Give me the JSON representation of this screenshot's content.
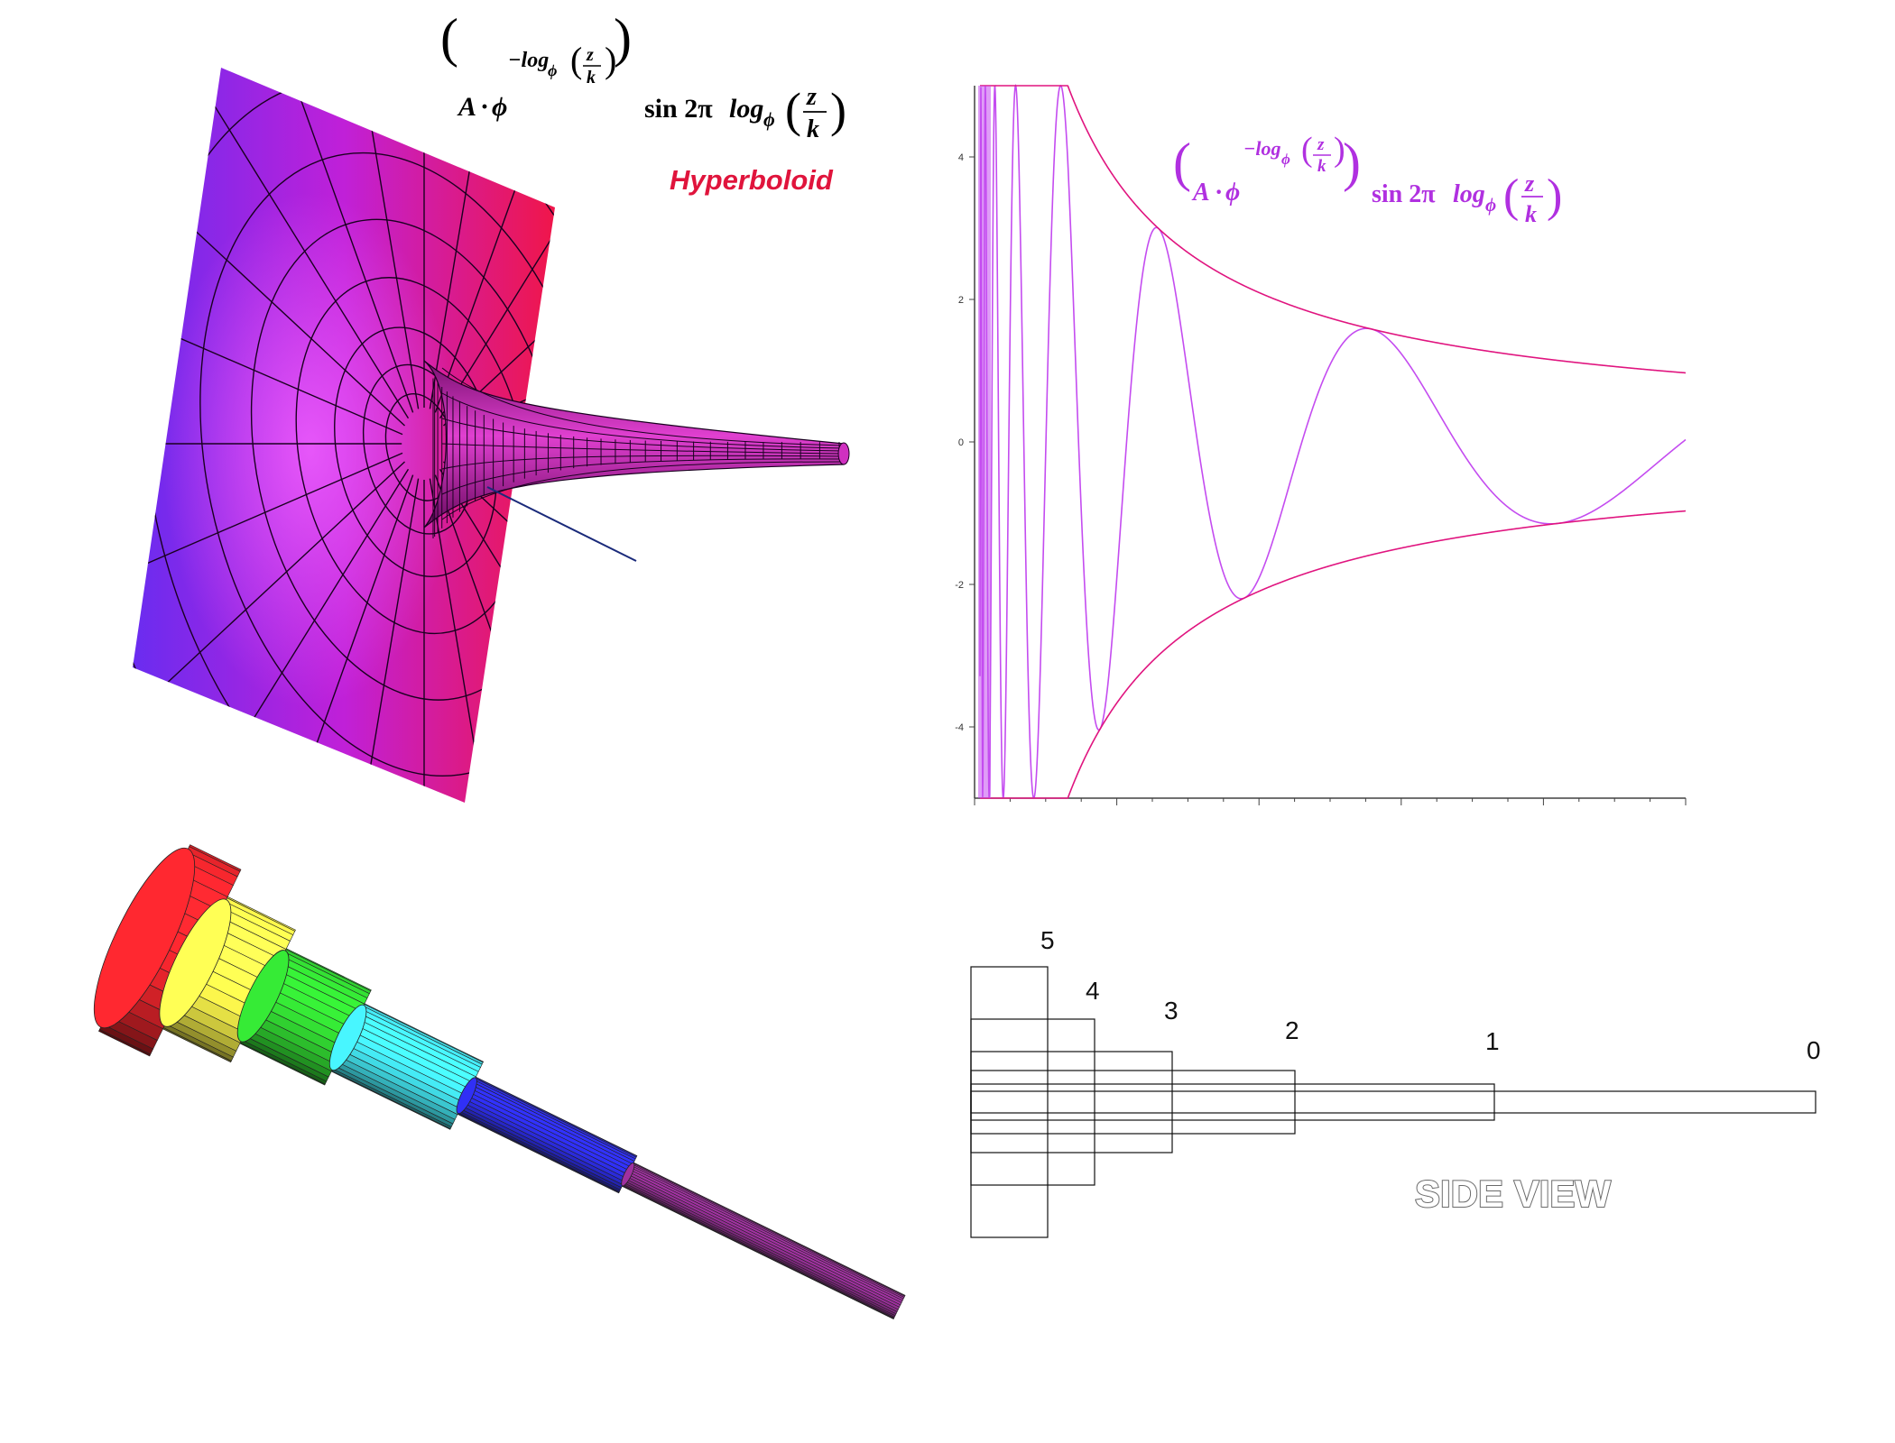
{
  "formula": {
    "coef": "A",
    "dot": "·",
    "base": "ϕ",
    "exponent": "−log",
    "log_base": "ϕ",
    "frac_num": "z",
    "frac_den": "k",
    "sin": "sin 2π",
    "log": "log"
  },
  "hyperboloid": {
    "label": "Hyperboloid"
  },
  "chart_data": {
    "type": "line",
    "ytick_labels": [
      "4",
      "2",
      "0",
      "-2",
      "-4"
    ],
    "ylim": [
      -5,
      5
    ],
    "series": [
      {
        "values": "damped oscillation A·ϕ^(−log_ϕ(z/k)) · sin 2π log_ϕ(z/k)"
      },
      {
        "values": "upper envelope"
      },
      {
        "values": "lower envelope"
      }
    ],
    "colors": {
      "curve": "#c44cf0",
      "envelope": "#e0147f",
      "axis": "#404040"
    }
  },
  "tube": {
    "colors": [
      "#e0232a",
      "#f7f14a",
      "#2fcc2f",
      "#3fd6e0",
      "#2a2ad6",
      "#8a2a8a"
    ]
  },
  "side_view": {
    "title": "SIDE VIEW",
    "levels": [
      "5",
      "4",
      "3",
      "2",
      "1",
      "0"
    ]
  }
}
